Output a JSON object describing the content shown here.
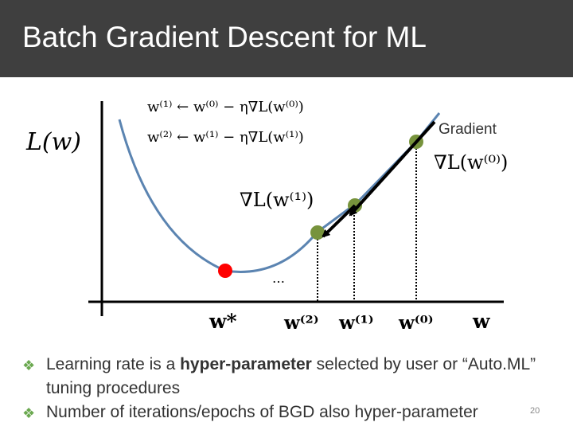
{
  "slide": {
    "title": "Batch Gradient Descent for ML",
    "page_number": "20"
  },
  "figure": {
    "update_rule_1": "w⁽¹⁾ ← w⁽⁰⁾ − η∇L(w⁽⁰⁾)",
    "update_rule_2": "w⁽²⁾ ← w⁽¹⁾ − η∇L(w⁽¹⁾)",
    "loss_label": "L(w)",
    "gradient_label": "Gradient",
    "grad_label_0": "∇L(w⁽⁰⁾)",
    "grad_label_1": "∇L(w⁽¹⁾)",
    "dots": "…",
    "axis_w_star": "w*",
    "axis_w2": "w⁽²⁾",
    "axis_w1": "w⁽¹⁾",
    "axis_w0": "w⁽⁰⁾",
    "axis_w": "w",
    "colors": {
      "curve": "#5b84b1",
      "iterate_point": "#77933c",
      "optimum_point": "#ff0000",
      "arrow": "#000000"
    }
  },
  "bullets": [
    {
      "parts": [
        {
          "text": "Learning rate is a ",
          "bold": false
        },
        {
          "text": "hyper-parameter",
          "bold": true
        },
        {
          "text": " selected by user or “Auto.ML” tuning procedures",
          "bold": false
        }
      ]
    },
    {
      "parts": [
        {
          "text": "Number of iterations/epochs of BGD also hyper-parameter",
          "bold": false
        }
      ]
    }
  ]
}
